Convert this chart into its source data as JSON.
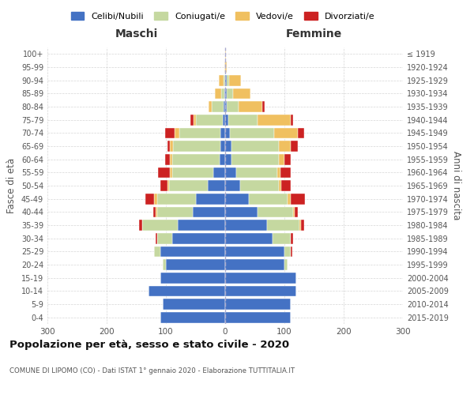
{
  "age_groups": [
    "0-4",
    "5-9",
    "10-14",
    "15-19",
    "20-24",
    "25-29",
    "30-34",
    "35-39",
    "40-44",
    "45-49",
    "50-54",
    "55-59",
    "60-64",
    "65-69",
    "70-74",
    "75-79",
    "80-84",
    "85-89",
    "90-94",
    "95-99",
    "100+"
  ],
  "birth_years": [
    "2015-2019",
    "2010-2014",
    "2005-2009",
    "2000-2004",
    "1995-1999",
    "1990-1994",
    "1985-1989",
    "1980-1984",
    "1975-1979",
    "1970-1974",
    "1965-1969",
    "1960-1964",
    "1955-1959",
    "1950-1954",
    "1945-1949",
    "1940-1944",
    "1935-1939",
    "1930-1934",
    "1925-1929",
    "1920-1924",
    "≤ 1919"
  ],
  "maschi": {
    "celibi": [
      110,
      105,
      130,
      110,
      100,
      110,
      90,
      80,
      55,
      50,
      30,
      20,
      10,
      8,
      8,
      4,
      3,
      2,
      0,
      0,
      0
    ],
    "coniugati": [
      0,
      0,
      0,
      0,
      5,
      10,
      25,
      60,
      60,
      65,
      65,
      70,
      80,
      80,
      70,
      45,
      20,
      5,
      3,
      0,
      0
    ],
    "vedovi": [
      0,
      0,
      0,
      0,
      0,
      0,
      0,
      0,
      2,
      5,
      3,
      3,
      3,
      5,
      8,
      5,
      5,
      10,
      8,
      2,
      0
    ],
    "divorziati": [
      0,
      0,
      0,
      0,
      0,
      0,
      3,
      5,
      5,
      15,
      12,
      20,
      8,
      5,
      15,
      5,
      0,
      0,
      0,
      0,
      0
    ]
  },
  "femmine": {
    "nubili": [
      110,
      110,
      120,
      120,
      100,
      100,
      80,
      70,
      55,
      40,
      25,
      18,
      10,
      10,
      8,
      5,
      3,
      3,
      2,
      0,
      0
    ],
    "coniugate": [
      0,
      0,
      0,
      0,
      5,
      10,
      30,
      55,
      60,
      65,
      65,
      70,
      80,
      80,
      75,
      50,
      20,
      10,
      5,
      0,
      0
    ],
    "vedove": [
      0,
      0,
      0,
      0,
      0,
      0,
      0,
      3,
      2,
      5,
      5,
      5,
      10,
      20,
      40,
      55,
      40,
      30,
      20,
      3,
      1
    ],
    "divorziate": [
      0,
      0,
      0,
      0,
      0,
      3,
      5,
      5,
      5,
      25,
      15,
      18,
      10,
      12,
      10,
      5,
      3,
      0,
      0,
      0,
      0
    ]
  },
  "colors": {
    "celibi": "#4472c4",
    "coniugati": "#c5d8a0",
    "vedovi": "#f0c060",
    "divorziati": "#cc2222"
  },
  "xlim": 300,
  "title": "Popolazione per età, sesso e stato civile - 2020",
  "subtitle": "COMUNE DI LIPOMO (CO) - Dati ISTAT 1° gennaio 2020 - Elaborazione TUTTITALIA.IT",
  "xlabel_left": "Maschi",
  "xlabel_right": "Femmine",
  "ylabel_left": "Fasce di età",
  "ylabel_right": "Anni di nascita",
  "legend_labels": [
    "Celibi/Nubili",
    "Coniugati/e",
    "Vedovi/e",
    "Divorziati/e"
  ],
  "background_color": "#ffffff",
  "grid_color": "#cccccc"
}
